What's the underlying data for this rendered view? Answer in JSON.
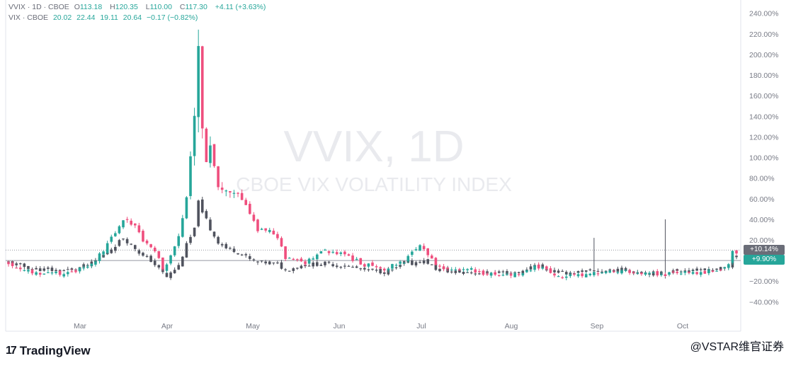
{
  "legend": {
    "vvix": {
      "symbol": "VVIX · 1D · CBOE",
      "o_label": "O",
      "o": "113.18",
      "h_label": "H",
      "h": "120.35",
      "l_label": "L",
      "l": "110.00",
      "c_label": "C",
      "c": "117.30",
      "change": "+4.11 (+3.63%)"
    },
    "vix": {
      "symbol": "VIX · CBOE",
      "o": "20.02",
      "h": "22.44",
      "l": "19.11",
      "c": "20.64",
      "change": "−0.17 (−0.82%)"
    }
  },
  "watermark": {
    "line1": "VVIX, 1D",
    "line2": "CBOE VIX VOLATILITY INDEX"
  },
  "brand": {
    "logo": "17",
    "name": "TradingView"
  },
  "credit": "@VSTAR维官证券",
  "badges": {
    "vvix": "+10.14%",
    "vix": "+9.90%"
  },
  "colors": {
    "up": "#26a69a",
    "down": "#ef4f7e",
    "vix": "#50535e"
  },
  "chart_data": {
    "type": "candlestick",
    "yaxis": {
      "unit": "%",
      "ticks": [
        "240.00%",
        "220.00%",
        "200.00%",
        "180.00%",
        "160.00%",
        "140.00%",
        "120.00%",
        "100.00%",
        "80.00%",
        "60.00%",
        "40.00%",
        "20.00%",
        "−20.00%",
        "−40.00%"
      ],
      "tick_values": [
        240,
        220,
        200,
        180,
        160,
        140,
        120,
        100,
        80,
        60,
        40,
        20,
        -20,
        -40
      ],
      "range": [
        -48,
        246
      ],
      "baseline": 0
    },
    "xaxis": {
      "ticks": [
        "Mar",
        "Apr",
        "May",
        "Jun",
        "Jul",
        "Aug",
        "Sep",
        "Oct"
      ]
    },
    "series": [
      {
        "name": "VVIX",
        "style": "colored",
        "anchors": [
          [
            0,
            -3
          ],
          [
            6,
            -12
          ],
          [
            13,
            -12
          ],
          [
            17,
            -10
          ],
          [
            21,
            -5
          ],
          [
            25,
            15
          ],
          [
            29,
            40
          ],
          [
            32,
            34
          ],
          [
            34,
            20
          ],
          [
            36,
            14
          ],
          [
            38,
            2
          ],
          [
            39,
            -8
          ],
          [
            40,
            -5
          ],
          [
            43,
            22
          ],
          [
            45,
            60
          ],
          [
            47,
            140
          ],
          [
            48,
            208
          ],
          [
            49,
            130
          ],
          [
            50,
            95
          ],
          [
            51,
            112
          ],
          [
            53,
            72
          ],
          [
            55,
            68
          ],
          [
            57,
            66
          ],
          [
            59,
            60
          ],
          [
            61,
            45
          ],
          [
            63,
            30
          ],
          [
            66,
            28
          ],
          [
            68,
            22
          ],
          [
            70,
            2
          ],
          [
            75,
            -2
          ],
          [
            80,
            10
          ],
          [
            85,
            5
          ],
          [
            90,
            -4
          ],
          [
            95,
            -8
          ],
          [
            98,
            -3
          ],
          [
            100,
            0
          ],
          [
            102,
            8
          ],
          [
            104,
            13
          ],
          [
            106,
            6
          ],
          [
            108,
            -6
          ],
          [
            112,
            -9
          ],
          [
            116,
            -8
          ],
          [
            120,
            -12
          ],
          [
            125,
            -14
          ],
          [
            130,
            -12
          ],
          [
            133,
            -6
          ],
          [
            135,
            -8
          ],
          [
            140,
            -16
          ],
          [
            145,
            -14
          ],
          [
            150,
            -12
          ],
          [
            155,
            -10
          ],
          [
            160,
            -12
          ],
          [
            165,
            -14
          ],
          [
            170,
            -11
          ],
          [
            175,
            -12
          ],
          [
            180,
            -8
          ],
          [
            182,
            -4
          ],
          [
            183,
            10
          ],
          [
            184,
            5
          ]
        ]
      },
      {
        "name": "VIX",
        "style": "mono",
        "anchors": [
          [
            0,
            -2
          ],
          [
            6,
            -8
          ],
          [
            13,
            -10
          ],
          [
            17,
            -8
          ],
          [
            21,
            -3
          ],
          [
            25,
            8
          ],
          [
            29,
            22
          ],
          [
            32,
            12
          ],
          [
            34,
            4
          ],
          [
            36,
            0
          ],
          [
            38,
            -8
          ],
          [
            39,
            -12
          ],
          [
            40,
            -16
          ],
          [
            43,
            -5
          ],
          [
            45,
            15
          ],
          [
            47,
            30
          ],
          [
            48,
            60
          ],
          [
            49,
            45
          ],
          [
            50,
            40
          ],
          [
            51,
            30
          ],
          [
            53,
            18
          ],
          [
            55,
            12
          ],
          [
            57,
            10
          ],
          [
            59,
            6
          ],
          [
            61,
            1
          ],
          [
            63,
            -2
          ],
          [
            66,
            -2
          ],
          [
            68,
            -4
          ],
          [
            70,
            -9
          ],
          [
            75,
            -4
          ],
          [
            80,
            -3
          ],
          [
            85,
            -5
          ],
          [
            90,
            -9
          ],
          [
            95,
            -11
          ],
          [
            98,
            -8
          ],
          [
            100,
            -2
          ],
          [
            102,
            -3
          ],
          [
            104,
            0
          ],
          [
            106,
            -2
          ],
          [
            108,
            -8
          ],
          [
            112,
            -11
          ],
          [
            116,
            -11
          ],
          [
            120,
            -12
          ],
          [
            125,
            -12
          ],
          [
            130,
            -11
          ],
          [
            133,
            -3
          ],
          [
            135,
            -8
          ],
          [
            140,
            -12
          ],
          [
            145,
            -11
          ],
          [
            150,
            -10
          ],
          [
            155,
            -9
          ],
          [
            160,
            -11
          ],
          [
            165,
            -13
          ],
          [
            170,
            -9
          ],
          [
            175,
            -10
          ],
          [
            180,
            -8
          ],
          [
            182,
            -6
          ],
          [
            183,
            5
          ],
          [
            184,
            4
          ]
        ]
      }
    ],
    "spikes": [
      {
        "x": 148,
        "high": 22
      },
      {
        "x": 166,
        "high": 40
      }
    ]
  }
}
